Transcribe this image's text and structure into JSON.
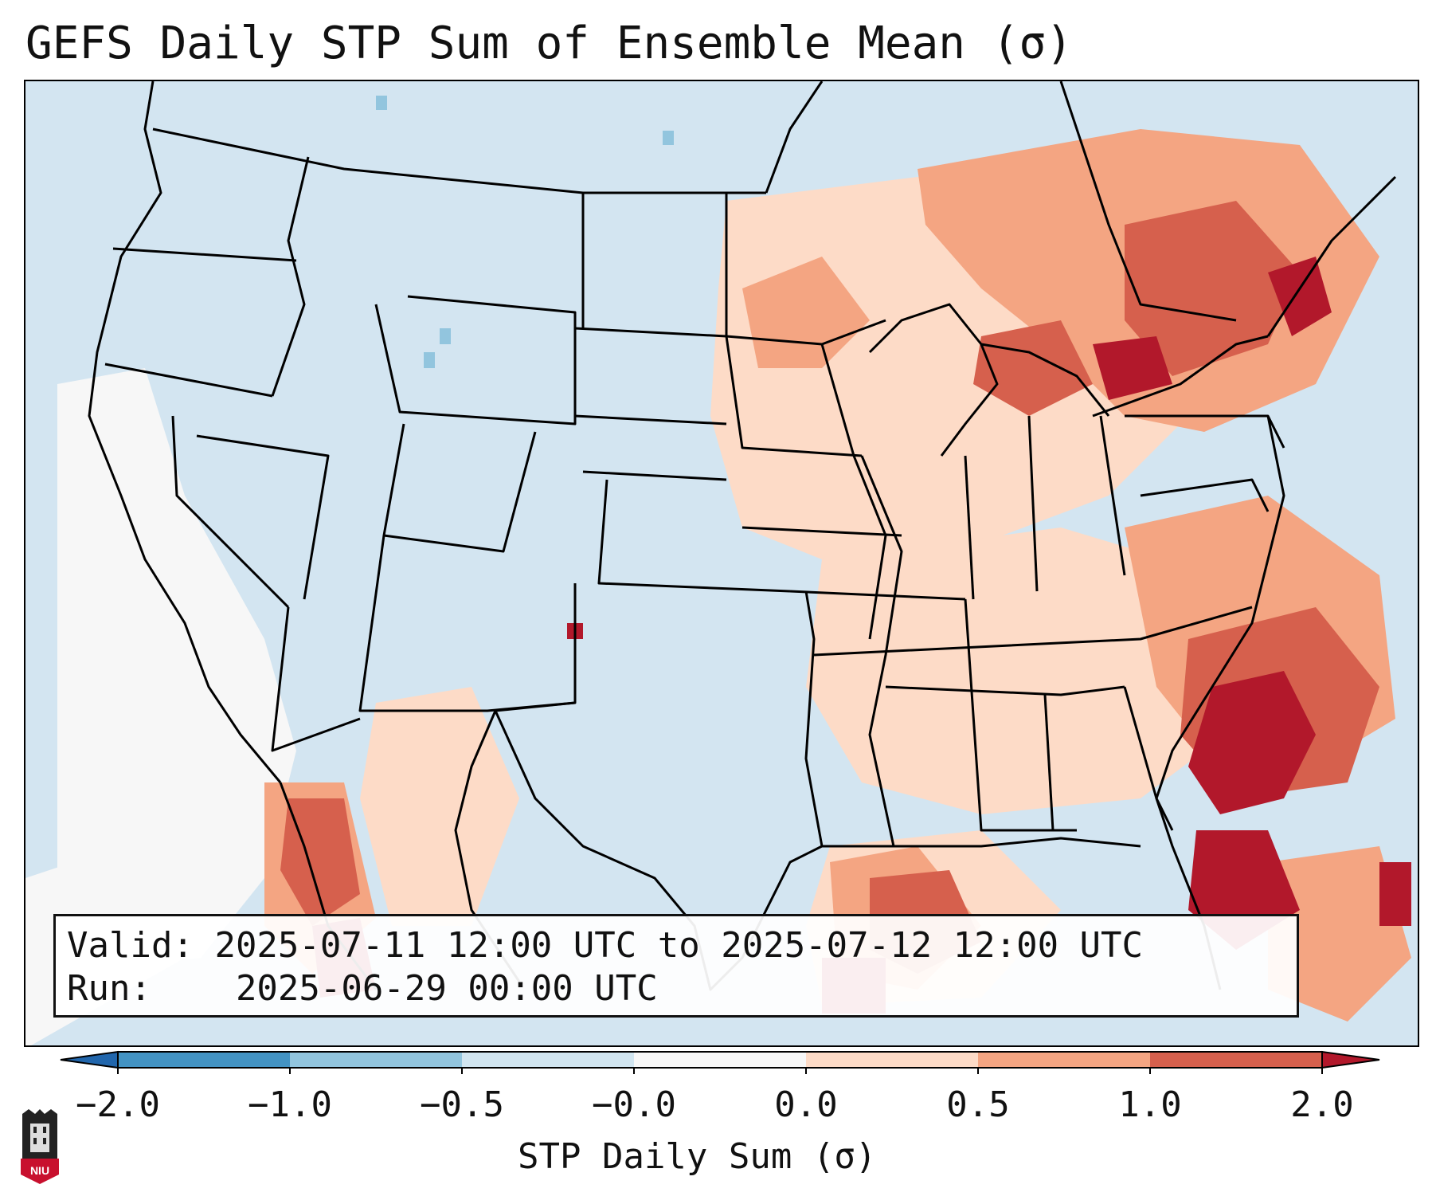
{
  "title": "GEFS Daily STP Sum of Ensemble Mean (σ)",
  "map": {
    "region": "Continental United States",
    "background_color": "#d3e5f1",
    "anomaly_areas": [
      {
        "label": "Upper Midwest / Great Lakes",
        "class": "light-positive"
      },
      {
        "label": "Northeast / New York / New England",
        "class": "positive"
      },
      {
        "label": "Western Atlantic off Southeast coast",
        "class": "strong-positive"
      },
      {
        "label": "Gulf of Mexico",
        "class": "positive"
      },
      {
        "label": "Eastern Pacific offshore",
        "class": "near-zero"
      }
    ]
  },
  "info": {
    "valid_label": "Valid:",
    "valid_value": "2025-07-11 12:00 UTC to 2025-07-12 12:00 UTC",
    "run_label": "Run:",
    "run_value": "2025-06-29 00:00 UTC"
  },
  "colorbar": {
    "label": "STP Daily Sum (σ)",
    "ticks": [
      "−2.0",
      "−1.0",
      "−0.5",
      "−0.0",
      "0.0",
      "0.5",
      "1.0",
      "2.0"
    ],
    "colors": [
      "#2166ac",
      "#4393c3",
      "#92c5de",
      "#d1e5f0",
      "#f7f7f7",
      "#fddbc7",
      "#f4a582",
      "#d6604d",
      "#b2182b"
    ]
  },
  "logo": {
    "text": "NIU",
    "name": "Northern Illinois University"
  }
}
